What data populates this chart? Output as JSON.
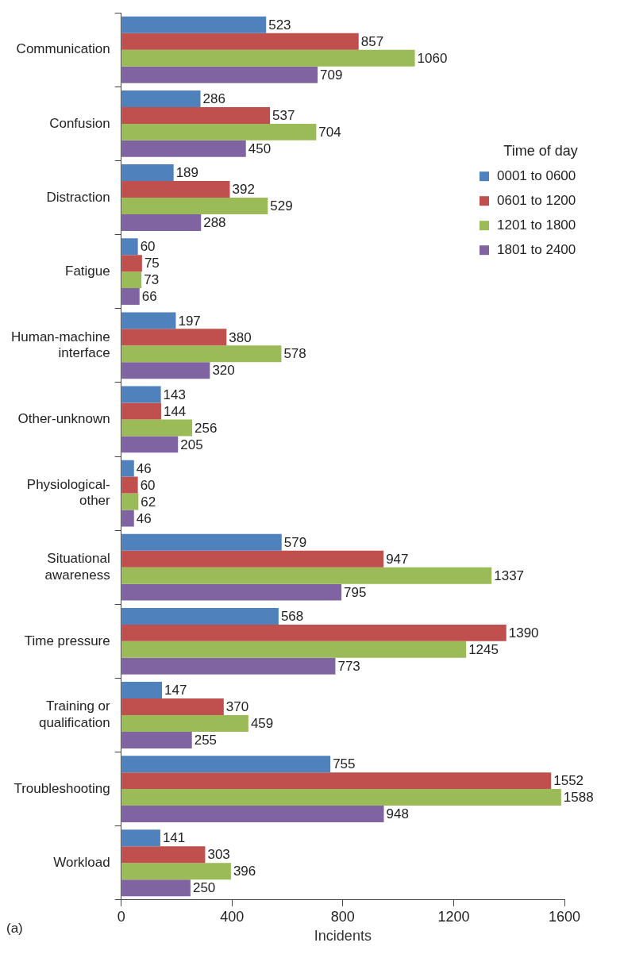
{
  "chart_data": {
    "type": "bar",
    "orientation": "horizontal",
    "xlabel": "Incidents",
    "legend_title": "Time of day",
    "legend": "top right",
    "data_labels": true,
    "grid": false,
    "categories": [
      "Communication",
      "Confusion",
      "Distraction",
      "Fatigue",
      "Human-machine interface",
      "Other-unknown",
      "Physiological-other",
      "Situational awareness",
      "Time pressure",
      "Training or qualification",
      "Troubleshooting",
      "Workload"
    ],
    "series": [
      {
        "name": "0001 to 0600",
        "color": "#4f81bd",
        "values": [
          523,
          286,
          189,
          60,
          197,
          143,
          46,
          579,
          568,
          147,
          755,
          141
        ]
      },
      {
        "name": "0601 to 1200",
        "color": "#c0504d",
        "values": [
          857,
          537,
          392,
          75,
          380,
          144,
          60,
          947,
          1390,
          370,
          1552,
          303
        ]
      },
      {
        "name": "1201 to 1800",
        "color": "#9bbb59",
        "values": [
          1060,
          704,
          529,
          73,
          578,
          256,
          62,
          1337,
          1245,
          459,
          1588,
          396
        ]
      },
      {
        "name": "1801 to 2400",
        "color": "#8064a2",
        "values": [
          709,
          450,
          288,
          66,
          320,
          205,
          46,
          795,
          773,
          255,
          948,
          250
        ]
      }
    ],
    "xlim": [
      0,
      1600
    ],
    "xticks": [
      0,
      400,
      800,
      1200,
      1600
    ],
    "annotations": [
      "(a)"
    ]
  }
}
